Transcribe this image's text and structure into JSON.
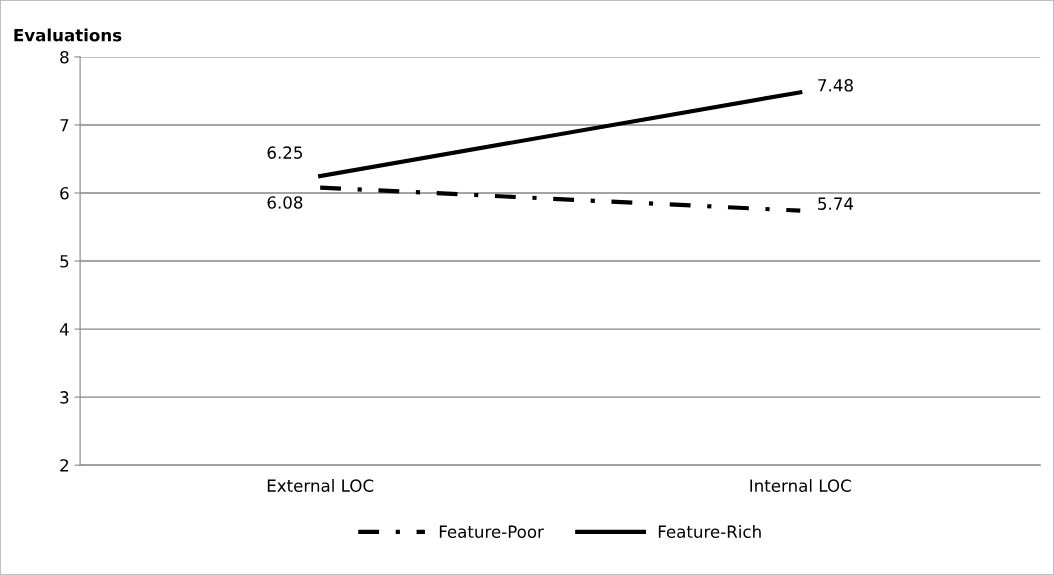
{
  "chart_data": {
    "type": "line",
    "ylabel": "Evaluations",
    "categories": [
      "External LOC",
      "Internal LOC"
    ],
    "series": [
      {
        "name": "Feature-Poor",
        "color": "#000000",
        "values": [
          6.08,
          5.74
        ],
        "line_style": "dashdot"
      },
      {
        "name": "Feature-Rich",
        "color": "#000000",
        "values": [
          6.25,
          7.48
        ],
        "line_style": "solid"
      }
    ],
    "ylim": [
      2,
      8
    ],
    "yticks": [
      2,
      3,
      4,
      5,
      6,
      7,
      8
    ],
    "grid": "y",
    "legend": "bottom",
    "data_labels": true,
    "marker": "none"
  }
}
